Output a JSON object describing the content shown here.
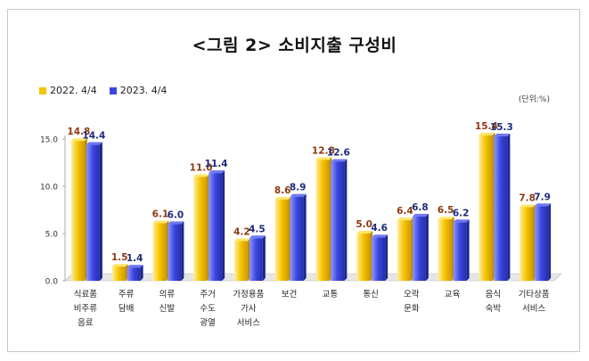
{
  "chart_data": {
    "type": "bar",
    "title": "<그림 2> 소비지출 구성비",
    "unit": "(단위:%)",
    "ylim": [
      0,
      15
    ],
    "yticks": [
      "0.0",
      "5.0",
      "10.0",
      "15.0"
    ],
    "categories": [
      [
        "식료품",
        "비주류",
        "음료"
      ],
      [
        "주류",
        "담배"
      ],
      [
        "의류",
        "신발"
      ],
      [
        "주거",
        "수도",
        "광열"
      ],
      [
        "가정용품",
        "가사",
        "서비스"
      ],
      [
        "보건"
      ],
      [
        "교통"
      ],
      [
        "통신"
      ],
      [
        "오락",
        "문화"
      ],
      [
        "교육"
      ],
      [
        "음식",
        "숙박"
      ],
      [
        "기타상품",
        "서비스"
      ]
    ],
    "series": [
      {
        "name": "2022. 4/4",
        "color": "#f5c400",
        "label_color": "#8b3a0f",
        "values": [
          14.8,
          1.5,
          6.1,
          11.0,
          4.2,
          8.6,
          12.8,
          5.0,
          6.4,
          6.5,
          15.4,
          7.8
        ],
        "labels": [
          "14.8",
          "1.5",
          "6.1",
          "11.0",
          "4.2",
          "8.6",
          "12.8",
          "5.0",
          "6.4",
          "6.5",
          "15.4",
          "7.8"
        ]
      },
      {
        "name": "2023. 4/4",
        "color": "#3a45e0",
        "label_color": "#1f2a7a",
        "values": [
          14.4,
          1.4,
          6.0,
          11.4,
          4.5,
          8.9,
          12.6,
          4.6,
          6.8,
          6.2,
          15.3,
          7.9
        ],
        "labels": [
          "14.4",
          "1.4",
          "6.0",
          "11.4",
          "4.5",
          "8.9",
          "12.6",
          "4.6",
          "6.8",
          "6.2",
          "15.3",
          "7.9"
        ]
      }
    ]
  }
}
